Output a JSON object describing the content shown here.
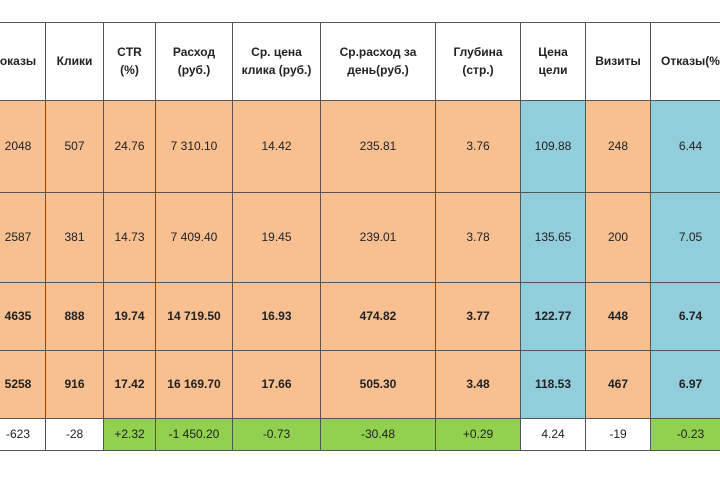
{
  "table": {
    "header": [
      "оказы",
      "Клики",
      "CTR (%)",
      "Расход (руб.)",
      "Ср. цена клика (руб.)",
      "Ср.расход за день(руб.)",
      "Глубина (стр.)",
      "Цена цели",
      "Визиты",
      "Отказы(%"
    ],
    "rows": [
      [
        "2048",
        "507",
        "24.76",
        "7 310.10",
        "14.42",
        "235.81",
        "3.76",
        "109.88",
        "248",
        "6.44"
      ],
      [
        "2587",
        "381",
        "14.73",
        "7 409.40",
        "19.45",
        "239.01",
        "3.78",
        "135.65",
        "200",
        "7.05"
      ],
      [
        "4635",
        "888",
        "19.74",
        "14 719.50",
        "16.93",
        "474.82",
        "3.77",
        "122.77",
        "448",
        "6.74"
      ],
      [
        "5258",
        "916",
        "17.42",
        "16 169.70",
        "17.66",
        "505.30",
        "3.48",
        "118.53",
        "467",
        "6.97"
      ],
      [
        "-623",
        "-28",
        "+2.32",
        "-1 450.20",
        "-0.73",
        "-30.48",
        "+0.29",
        "4.24",
        "-19",
        "-0.23"
      ]
    ]
  }
}
